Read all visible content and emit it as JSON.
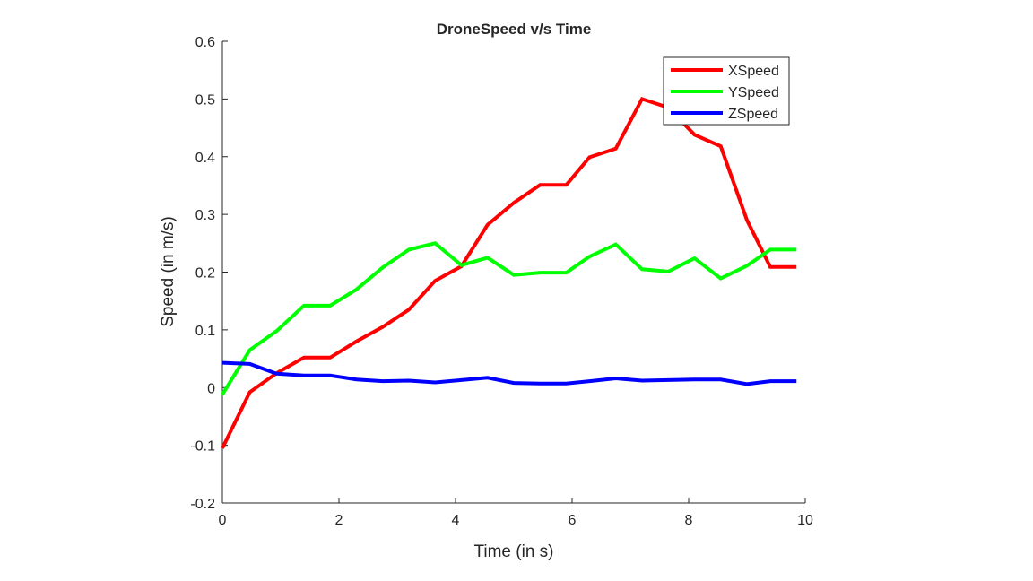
{
  "chart_data": {
    "type": "line",
    "title": "DroneSpeed v/s Time",
    "xlabel": "Time (in s)",
    "ylabel": "Speed (in m/s)",
    "xlim": [
      0,
      10
    ],
    "ylim": [
      -0.2,
      0.6
    ],
    "xticks": [
      "0",
      "2",
      "4",
      "6",
      "8",
      "10"
    ],
    "yticks": [
      "-0.2",
      "-0.1",
      "0",
      "0.1",
      "0.2",
      "0.3",
      "0.4",
      "0.5",
      "0.6"
    ],
    "grid": false,
    "legend_position": "top-right",
    "x": [
      0,
      0.47,
      0.93,
      1.4,
      1.85,
      2.3,
      2.75,
      3.2,
      3.65,
      4.1,
      4.55,
      5.0,
      5.45,
      5.9,
      6.3,
      6.75,
      7.2,
      7.65,
      8.1,
      8.55,
      9.0,
      9.4,
      9.85
    ],
    "series": [
      {
        "name": "XSpeed",
        "color": "#ff0000",
        "values": [
          -0.105,
          -0.008,
          0.025,
          0.052,
          0.052,
          0.08,
          0.105,
          0.135,
          0.185,
          0.21,
          0.282,
          0.32,
          0.351,
          0.351,
          0.399,
          0.414,
          0.5,
          0.485,
          0.438,
          0.418,
          0.29,
          0.209,
          0.209
        ]
      },
      {
        "name": "YSpeed",
        "color": "#00ff00",
        "values": [
          -0.012,
          0.065,
          0.098,
          0.142,
          0.142,
          0.17,
          0.208,
          0.239,
          0.25,
          0.212,
          0.225,
          0.195,
          0.199,
          0.199,
          0.227,
          0.248,
          0.205,
          0.201,
          0.224,
          0.189,
          0.211,
          0.239,
          0.239
        ]
      },
      {
        "name": "ZSpeed",
        "color": "#0000ff",
        "values": [
          0.043,
          0.041,
          0.024,
          0.021,
          0.021,
          0.014,
          0.011,
          0.012,
          0.009,
          0.013,
          0.017,
          0.008,
          0.007,
          0.007,
          0.011,
          0.016,
          0.012,
          0.013,
          0.014,
          0.014,
          0.006,
          0.011,
          0.011
        ]
      }
    ]
  }
}
